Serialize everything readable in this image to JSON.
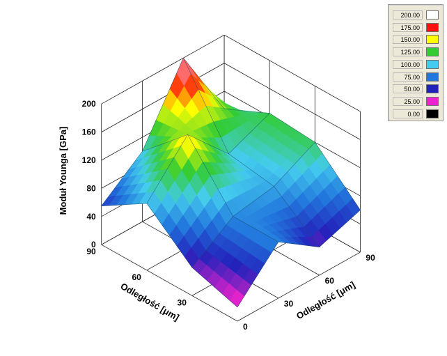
{
  "chart_data": {
    "type": "surface3d",
    "x_values": [
      0,
      30,
      60,
      90
    ],
    "y_values": [
      0,
      30,
      60,
      90
    ],
    "z": [
      [
        20,
        80,
        40,
        60
      ],
      [
        40,
        80,
        90,
        120
      ],
      [
        95,
        160,
        100,
        125
      ],
      [
        55,
        100,
        200,
        95
      ]
    ],
    "xlabel": "Odległość [μm]",
    "ylabel": "Odległość [μm]",
    "zlabel": "Moduł Younga [GPa]",
    "x_ticks": [
      "0",
      "30",
      "60",
      "90"
    ],
    "y_ticks": [
      "30",
      "60",
      "90"
    ],
    "z_ticks": [
      "0",
      "40",
      "80",
      "120",
      "160",
      "200"
    ],
    "zlim": [
      0,
      200
    ],
    "grid": true
  },
  "legend": {
    "position": "top-right",
    "entries": [
      {
        "value": "200.00",
        "color": "#ffffff"
      },
      {
        "value": "175.00",
        "color": "#ff1010"
      },
      {
        "value": "150.00",
        "color": "#ffff00"
      },
      {
        "value": "125.00",
        "color": "#33cc33"
      },
      {
        "value": "100.00",
        "color": "#44ccee"
      },
      {
        "value": "75.00",
        "color": "#2277dd"
      },
      {
        "value": "50.00",
        "color": "#2222bb"
      },
      {
        "value": "25.00",
        "color": "#ee22cc"
      },
      {
        "value": "0.00",
        "color": "#000000"
      }
    ]
  }
}
